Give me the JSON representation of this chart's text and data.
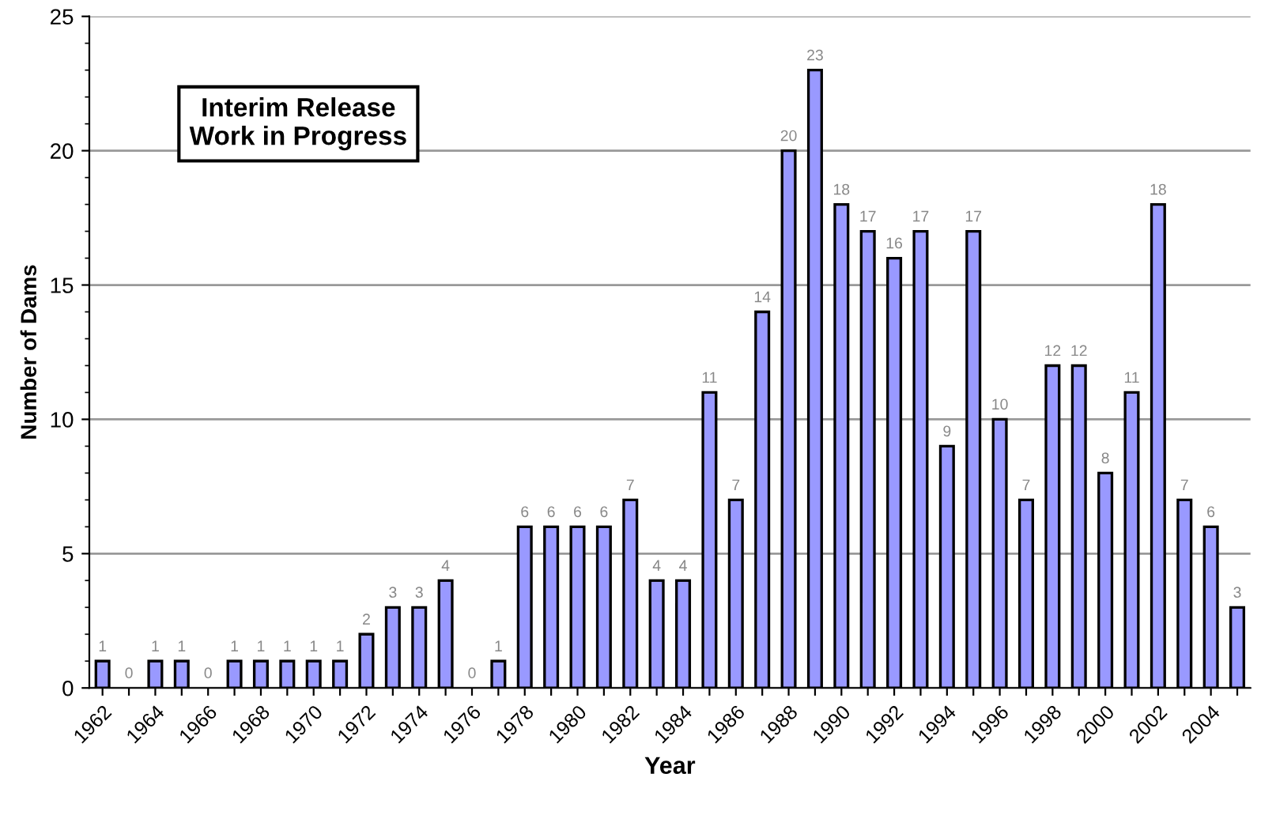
{
  "chart_data": {
    "type": "bar",
    "xlabel": "Year",
    "ylabel": "Number of Dams",
    "categories": [
      "1962",
      null,
      "1964",
      null,
      "1966",
      null,
      "1968",
      null,
      "1970",
      null,
      "1972",
      null,
      "1974",
      null,
      "1976",
      null,
      "1978",
      null,
      "1980",
      null,
      "1982",
      null,
      "1984",
      null,
      "1986",
      null,
      "1988",
      null,
      "1990",
      null,
      "1992",
      null,
      "1994",
      null,
      "1996",
      null,
      "1998",
      null,
      "2000",
      null,
      "2002",
      null,
      "2004",
      null
    ],
    "values": [
      1,
      0,
      1,
      1,
      0,
      1,
      1,
      1,
      1,
      1,
      2,
      3,
      3,
      4,
      0,
      1,
      6,
      6,
      6,
      6,
      7,
      4,
      4,
      11,
      7,
      14,
      20,
      23,
      18,
      17,
      16,
      17,
      9,
      17,
      10,
      7,
      12,
      12,
      8,
      11,
      18,
      7,
      6,
      3
    ],
    "color": "#9999ff",
    "ylim": [
      0,
      25
    ],
    "yticks": [
      0,
      5,
      10,
      15,
      20,
      25
    ],
    "grid": "y",
    "data_labels": true,
    "annotations": [
      "Interim Release\nWork in Progress"
    ]
  }
}
